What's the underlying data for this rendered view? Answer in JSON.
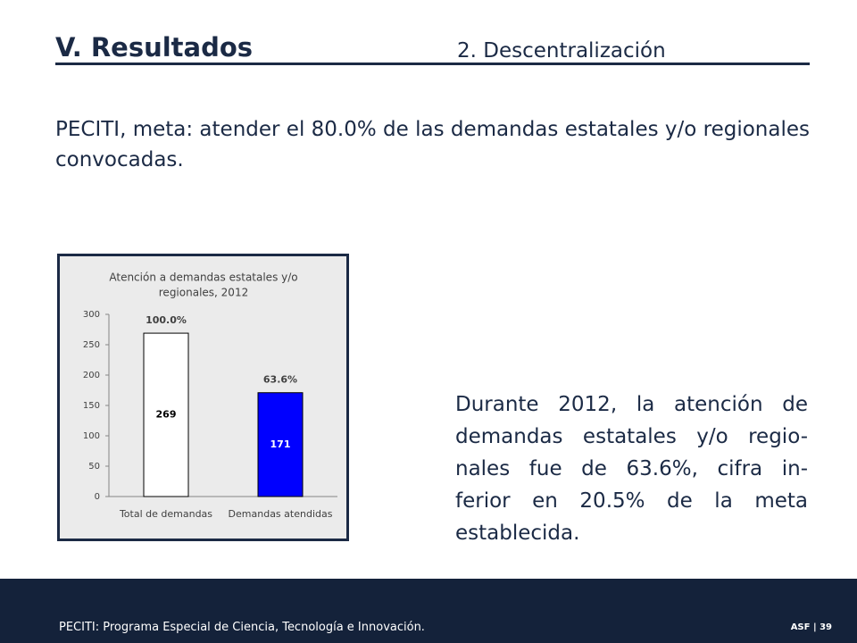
{
  "header": {
    "title": "V. Resultados",
    "subtitle": "2. Descentralización"
  },
  "intro": "PECITI, meta: atender el 80.0% de las demandas estatales y/o regionales convocadas.",
  "chart_data": {
    "type": "bar",
    "title": [
      "Atención a demandas estatales y/o",
      "regionales, 2012"
    ],
    "categories": [
      "Total de demandas",
      "Demandas atendidas"
    ],
    "values": [
      269,
      171
    ],
    "colors": [
      "#ffffff",
      "#0000ff"
    ],
    "label_colors": [
      "#000000",
      "#ffffff"
    ],
    "percent_labels": [
      "100.0%",
      "63.6%"
    ],
    "ylim": [
      0,
      300
    ],
    "yticks": [
      0,
      50,
      100,
      150,
      200,
      250,
      300
    ],
    "grid": false
  },
  "note": {
    "lines": [
      "Durante 2012, la atención de",
      "demandas estatales y/o regio-",
      "nales fue de 63.6%, cifra in-",
      "ferior en 20.5% de la meta",
      "establecida."
    ]
  },
  "footer": {
    "text": "PECITI: Programa Especial de Ciencia, Tecnología e Innovación.",
    "page": "ASF | 39"
  }
}
